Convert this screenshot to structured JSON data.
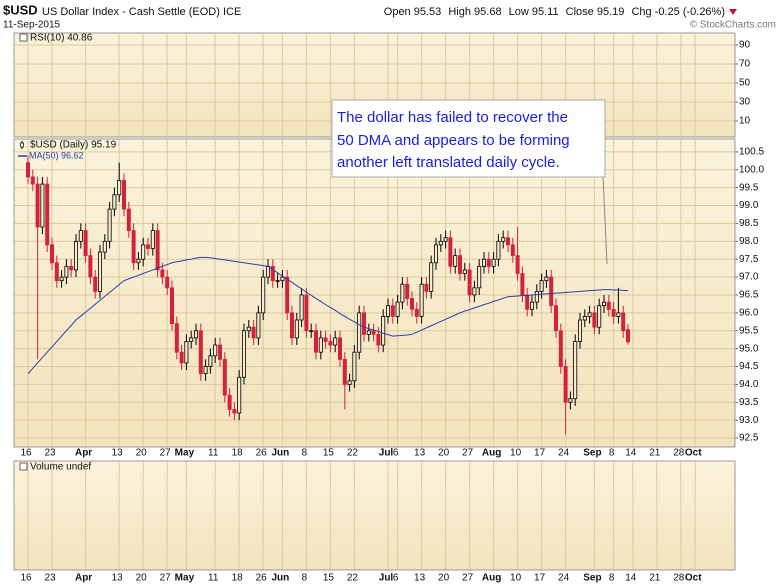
{
  "header": {
    "symbol": "$USD",
    "name": "US Dollar Index - Cash Settle (EOD) ICE",
    "date": "11-Sep-2015",
    "credit": "© StockCharts.com",
    "quote": [
      {
        "label": "Open",
        "value": 95.53
      },
      {
        "label": "High",
        "value": 95.68
      },
      {
        "label": "Low",
        "value": 95.11
      },
      {
        "label": "Close",
        "value": 95.19
      }
    ],
    "chg_label": "Chg",
    "chg": "-0.25 (-0.26%)"
  },
  "chart_data": [
    {
      "type": "indicator",
      "label": "RSI(10) 40.86",
      "ylim": [
        -6.84,
        102.63
      ],
      "yticks": [
        90,
        70,
        50,
        30,
        10
      ],
      "grid": true
    },
    {
      "type": "candlestick",
      "grid": true,
      "categories": [
        "Mar 16",
        "Mar 17",
        "Mar 18",
        "Mar 19",
        "Mar 20",
        "Mar 23",
        "Mar 24",
        "Mar 25",
        "Mar 26",
        "Mar 27",
        "Mar 30",
        "Mar 31",
        "Apr 1",
        "Apr 2",
        "Apr 6",
        "Apr 7",
        "Apr 8",
        "Apr 9",
        "Apr 10",
        "Apr 13",
        "Apr 14",
        "Apr 15",
        "Apr 16",
        "Apr 17",
        "Apr 20",
        "Apr 21",
        "Apr 22",
        "Apr 23",
        "Apr 24",
        "Apr 27",
        "Apr 28",
        "Apr 29",
        "Apr 30",
        "May 1",
        "May 4",
        "May 5",
        "May 6",
        "May 7",
        "May 8",
        "May 11",
        "May 12",
        "May 13",
        "May 14",
        "May 15",
        "May 18",
        "May 19",
        "May 20",
        "May 21",
        "May 22",
        "May 26",
        "May 27",
        "May 28",
        "May 29",
        "Jun 1",
        "Jun 2",
        "Jun 3",
        "Jun 4",
        "Jun 5",
        "Jun 8",
        "Jun 9",
        "Jun 10",
        "Jun 11",
        "Jun 12",
        "Jun 15",
        "Jun 16",
        "Jun 17",
        "Jun 18",
        "Jun 19",
        "Jun 22",
        "Jun 23",
        "Jun 24",
        "Jun 25",
        "Jun 26",
        "Jun 29",
        "Jun 30",
        "Jul 1",
        "Jul 2",
        "Jul 6",
        "Jul 7",
        "Jul 8",
        "Jul 9",
        "Jul 10",
        "Jul 13",
        "Jul 14",
        "Jul 15",
        "Jul 16",
        "Jul 17",
        "Jul 20",
        "Jul 21",
        "Jul 22",
        "Jul 23",
        "Jul 24",
        "Jul 27",
        "Jul 28",
        "Jul 29",
        "Jul 30",
        "Jul 31",
        "Aug 3",
        "Aug 4",
        "Aug 5",
        "Aug 6",
        "Aug 7",
        "Aug 10",
        "Aug 11",
        "Aug 12",
        "Aug 13",
        "Aug 14",
        "Aug 17",
        "Aug 18",
        "Aug 19",
        "Aug 20",
        "Aug 21",
        "Aug 24",
        "Aug 25",
        "Aug 26",
        "Aug 27",
        "Aug 28",
        "Aug 31",
        "Sep 1",
        "Sep 2",
        "Sep 3",
        "Sep 4",
        "Sep 8",
        "Sep 9",
        "Sep 10",
        "Sep 11",
        "Sep 14",
        "Sep 15",
        "Sep 16",
        "Sep 17",
        "Sep 18",
        "Sep 21",
        "Sep 22",
        "Sep 23",
        "Sep 24",
        "Sep 25",
        "Sep 28",
        "Sep 29",
        "Sep 30",
        "Oct 1",
        "Oct 2"
      ],
      "candles": {
        "name": "$USD (Daily) 95.19",
        "up_color": "#000000",
        "down_color": "#d6213a",
        "open": [
          100.2,
          99.8,
          99.6,
          98.4,
          99.6,
          97.9,
          97.4,
          96.9,
          97.0,
          97.3,
          97.2,
          98.0,
          98.3,
          97.6,
          97.0,
          96.6,
          97.7,
          98.0,
          98.9,
          99.3,
          99.7,
          98.9,
          98.3,
          97.4,
          97.5,
          97.9,
          97.8,
          98.3,
          97.2,
          97.0,
          96.7,
          95.7,
          94.9,
          94.6,
          95.2,
          95.3,
          95.5,
          94.3,
          94.5,
          94.8,
          95.1,
          94.7,
          93.7,
          93.3,
          93.2,
          94.2,
          95.5,
          95.6,
          95.3,
          96.0,
          97.0,
          97.3,
          96.9,
          96.9,
          97.0,
          96.0,
          95.3,
          95.8,
          96.5,
          95.5,
          95.5,
          94.9,
          95.3,
          95.2,
          95.1,
          95.3,
          94.7,
          94.0,
          94.1,
          94.9,
          96.0,
          95.4,
          95.5,
          95.4,
          95.1,
          95.9,
          96.2,
          95.9,
          96.3,
          96.8,
          96.4,
          96.1,
          95.9,
          96.8,
          96.6,
          97.4,
          97.9,
          98.0,
          98.1,
          97.3,
          97.6,
          97.1,
          97.2,
          96.5,
          96.7,
          97.3,
          97.5,
          97.3,
          97.5,
          98.0,
          98.1,
          97.9,
          97.6,
          97.1,
          96.5,
          96.1,
          96.3,
          96.6,
          96.9,
          97.0,
          96.2,
          95.5,
          94.5,
          93.5,
          93.6,
          95.2,
          95.8,
          95.9,
          96.0,
          95.6,
          96.2,
          96.3,
          96.1,
          95.9,
          96.0,
          95.53,
          null,
          null,
          null,
          null,
          null,
          null,
          null,
          null,
          null,
          null,
          null,
          null,
          null,
          null,
          null
        ],
        "high": [
          100.4,
          100.0,
          99.8,
          99.8,
          99.8,
          98.1,
          97.6,
          97.2,
          97.5,
          97.5,
          98.2,
          98.5,
          98.5,
          97.8,
          97.2,
          97.9,
          98.2,
          99.1,
          99.5,
          100.2,
          99.9,
          99.1,
          98.5,
          97.7,
          98.1,
          98.1,
          98.5,
          98.5,
          97.4,
          97.2,
          96.9,
          95.9,
          95.1,
          95.4,
          95.5,
          95.7,
          95.7,
          94.7,
          95.0,
          95.3,
          95.3,
          94.9,
          93.9,
          93.5,
          94.4,
          95.7,
          95.8,
          95.8,
          96.2,
          97.2,
          97.5,
          97.5,
          97.1,
          97.2,
          97.2,
          96.2,
          96.0,
          96.7,
          96.7,
          95.7,
          95.7,
          95.5,
          95.5,
          95.4,
          95.5,
          95.5,
          94.9,
          94.3,
          95.1,
          96.2,
          96.2,
          95.7,
          95.7,
          95.6,
          96.1,
          96.4,
          96.4,
          96.5,
          97.0,
          97.0,
          96.6,
          96.3,
          97.0,
          97.0,
          97.6,
          98.1,
          98.2,
          98.3,
          98.3,
          97.8,
          97.8,
          97.4,
          97.4,
          96.9,
          97.5,
          97.7,
          97.7,
          97.7,
          98.2,
          98.3,
          98.3,
          98.1,
          98.4,
          97.3,
          96.7,
          96.5,
          96.8,
          97.1,
          97.2,
          97.2,
          96.4,
          95.7,
          94.7,
          93.8,
          95.4,
          96.0,
          96.1,
          96.2,
          96.2,
          96.4,
          96.5,
          96.5,
          96.3,
          96.7,
          96.2,
          95.68,
          null,
          null,
          null,
          null,
          null,
          null,
          null,
          null,
          null,
          null,
          null,
          null,
          null,
          null,
          null
        ],
        "low": [
          99.6,
          99.4,
          94.7,
          98.2,
          97.7,
          97.2,
          96.7,
          96.7,
          96.8,
          97.0,
          97.0,
          97.8,
          97.4,
          96.8,
          96.4,
          96.4,
          97.5,
          97.8,
          98.7,
          99.1,
          98.7,
          98.1,
          97.2,
          97.2,
          97.3,
          97.6,
          97.6,
          97.0,
          96.8,
          96.5,
          95.5,
          94.7,
          94.4,
          94.4,
          95.0,
          95.1,
          94.1,
          94.1,
          94.3,
          94.6,
          94.5,
          93.5,
          93.1,
          93.0,
          93.0,
          94.0,
          95.3,
          95.1,
          95.1,
          95.8,
          96.8,
          96.7,
          96.7,
          96.7,
          95.8,
          95.1,
          95.1,
          95.6,
          95.3,
          95.3,
          94.7,
          94.7,
          95.0,
          94.9,
          94.9,
          94.5,
          93.3,
          93.8,
          93.9,
          94.7,
          95.2,
          95.2,
          95.2,
          94.9,
          94.9,
          95.7,
          95.7,
          95.7,
          96.1,
          96.2,
          95.9,
          95.7,
          95.7,
          96.4,
          96.4,
          97.2,
          97.7,
          97.8,
          97.1,
          97.1,
          96.9,
          96.9,
          96.3,
          96.3,
          96.5,
          97.1,
          97.1,
          97.1,
          97.3,
          97.8,
          97.7,
          97.4,
          96.9,
          96.3,
          95.9,
          95.9,
          96.1,
          96.4,
          96.7,
          96.0,
          95.3,
          94.3,
          92.6,
          93.3,
          93.4,
          95.0,
          95.6,
          95.7,
          95.4,
          95.4,
          96.0,
          95.9,
          95.7,
          95.7,
          95.3,
          95.11,
          null,
          null,
          null,
          null,
          null,
          null,
          null,
          null,
          null,
          null,
          null,
          null,
          null,
          null,
          null
        ],
        "close": [
          99.8,
          99.6,
          98.4,
          99.6,
          97.9,
          97.4,
          96.9,
          97.0,
          97.3,
          97.2,
          98.0,
          98.3,
          97.6,
          97.0,
          96.6,
          97.7,
          98.0,
          98.9,
          99.3,
          99.7,
          98.9,
          98.3,
          97.4,
          97.5,
          97.9,
          97.8,
          98.3,
          97.2,
          97.0,
          96.7,
          95.7,
          94.9,
          94.6,
          95.2,
          95.3,
          95.5,
          94.3,
          94.5,
          94.8,
          95.1,
          94.7,
          93.7,
          93.3,
          93.2,
          94.2,
          95.5,
          95.6,
          95.3,
          96.0,
          97.0,
          97.3,
          96.9,
          96.9,
          97.0,
          96.0,
          95.3,
          95.8,
          96.5,
          95.5,
          95.5,
          94.9,
          95.3,
          95.2,
          95.1,
          95.3,
          94.7,
          94.0,
          94.1,
          94.9,
          96.0,
          95.4,
          95.5,
          95.4,
          95.1,
          95.9,
          96.2,
          95.9,
          96.3,
          96.8,
          96.4,
          96.1,
          95.9,
          96.8,
          96.6,
          97.4,
          97.9,
          98.0,
          98.1,
          97.3,
          97.6,
          97.1,
          97.2,
          96.5,
          96.7,
          97.3,
          97.5,
          97.3,
          97.5,
          98.0,
          98.1,
          97.9,
          97.6,
          97.1,
          96.5,
          96.1,
          96.3,
          96.6,
          96.9,
          97.0,
          96.2,
          95.5,
          94.5,
          93.5,
          93.6,
          95.2,
          95.8,
          95.9,
          96.0,
          95.6,
          96.2,
          96.3,
          96.1,
          95.9,
          96.0,
          95.5,
          95.19,
          null,
          null,
          null,
          null,
          null,
          null,
          null,
          null,
          null,
          null,
          null,
          null,
          null,
          null,
          null
        ]
      },
      "series": [
        {
          "name": "MA(50) 96.62",
          "color": "#2b3ea8",
          "values": [
            94.3,
            94.45,
            94.6,
            94.75,
            94.9,
            95.05,
            95.2,
            95.35,
            95.5,
            95.65,
            95.8,
            95.91,
            96.02,
            96.13,
            96.24,
            96.35,
            96.46,
            96.57,
            96.68,
            96.79,
            96.9,
            96.95,
            97.0,
            97.05,
            97.1,
            97.15,
            97.2,
            97.25,
            97.3,
            97.35,
            97.4,
            97.43,
            97.45,
            97.48,
            97.5,
            97.53,
            97.55,
            97.55,
            97.54,
            97.52,
            97.5,
            97.48,
            97.46,
            97.44,
            97.42,
            97.4,
            97.38,
            97.36,
            97.34,
            97.32,
            97.3,
            97.21,
            97.12,
            97.03,
            96.94,
            96.85,
            96.76,
            96.67,
            96.58,
            96.49,
            96.4,
            96.32,
            96.23,
            96.15,
            96.07,
            95.98,
            95.9,
            95.82,
            95.75,
            95.67,
            95.6,
            95.56,
            95.52,
            95.48,
            95.43,
            95.39,
            95.35,
            95.36,
            95.37,
            95.38,
            95.4,
            95.46,
            95.52,
            95.58,
            95.64,
            95.7,
            95.76,
            95.82,
            95.88,
            95.94,
            96.0,
            96.05,
            96.09,
            96.14,
            96.18,
            96.23,
            96.27,
            96.32,
            96.36,
            96.41,
            96.45,
            96.46,
            96.47,
            96.48,
            96.49,
            96.5,
            96.51,
            96.52,
            96.53,
            96.54,
            96.55,
            96.56,
            96.57,
            96.58,
            96.59,
            96.6,
            96.61,
            96.62,
            96.63,
            96.64,
            96.65,
            96.65,
            96.64,
            96.64,
            96.63,
            96.62,
            null,
            null,
            null,
            null,
            null,
            null,
            null,
            null,
            null,
            null,
            null,
            null,
            null,
            null,
            null
          ]
        }
      ],
      "ylim": [
        92.25,
        100.86
      ],
      "yticks": [
        92.5,
        {
          "value": 93,
          "label": "93.0"
        },
        93.5,
        {
          "value": 94,
          "label": "94.0"
        },
        94.5,
        {
          "value": 95,
          "label": "95.0"
        },
        95.5,
        {
          "value": 96,
          "label": "96.0"
        },
        96.5,
        {
          "value": 97,
          "label": "97.0"
        },
        97.5,
        {
          "value": 98,
          "label": "98.0"
        },
        98.5,
        {
          "value": 99,
          "label": "99.0"
        },
        99.5,
        {
          "value": 100,
          "label": "100.0"
        },
        100.5
      ],
      "xticks": [
        {
          "value": "Mar 16",
          "label": "16"
        },
        {
          "value": "Mar 23",
          "label": "23"
        },
        {
          "value": "Apr 1",
          "label": "Apr"
        },
        {
          "value": "Apr 13",
          "label": "13"
        },
        {
          "value": "Apr 20",
          "label": "20"
        },
        {
          "value": "Apr 27",
          "label": "27"
        },
        {
          "value": "May 1",
          "label": "May"
        },
        {
          "value": "May 11",
          "label": "11"
        },
        {
          "value": "May 18",
          "label": "18"
        },
        {
          "value": "May 26",
          "label": "26"
        },
        {
          "value": "Jun 1",
          "label": "Jun"
        },
        {
          "value": "Jun 8",
          "label": "8"
        },
        {
          "value": "Jun 15",
          "label": "15"
        },
        {
          "value": "Jun 22",
          "label": "22"
        },
        {
          "value": "Jul 1",
          "label": "Jul"
        },
        {
          "value": "Jul 6",
          "label": "6"
        },
        {
          "value": "Jul 13",
          "label": "13"
        },
        {
          "value": "Jul 20",
          "label": "20"
        },
        {
          "value": "Jul 27",
          "label": "27"
        },
        {
          "value": "Aug 3",
          "label": "Aug"
        },
        {
          "value": "Aug 10",
          "label": "10"
        },
        {
          "value": "Aug 17",
          "label": "17"
        },
        {
          "value": "Aug 24",
          "label": "24"
        },
        {
          "value": "Sep 1",
          "label": "Sep"
        },
        {
          "value": "Sep 8",
          "label": "8"
        },
        {
          "value": "Sep 14",
          "label": "14"
        },
        {
          "value": "Sep 21",
          "label": "21"
        },
        {
          "value": "Sep 28",
          "label": "28"
        },
        {
          "value": "Oct 1",
          "label": "Oct"
        }
      ],
      "annotation": {
        "lines": [
          "The dollar has failed to recover the",
          "50 DMA and appears to be forming",
          "another left translated daily cycle."
        ],
        "color": "#1c1ce0"
      }
    },
    {
      "type": "volume",
      "label": "Volume undef"
    }
  ]
}
